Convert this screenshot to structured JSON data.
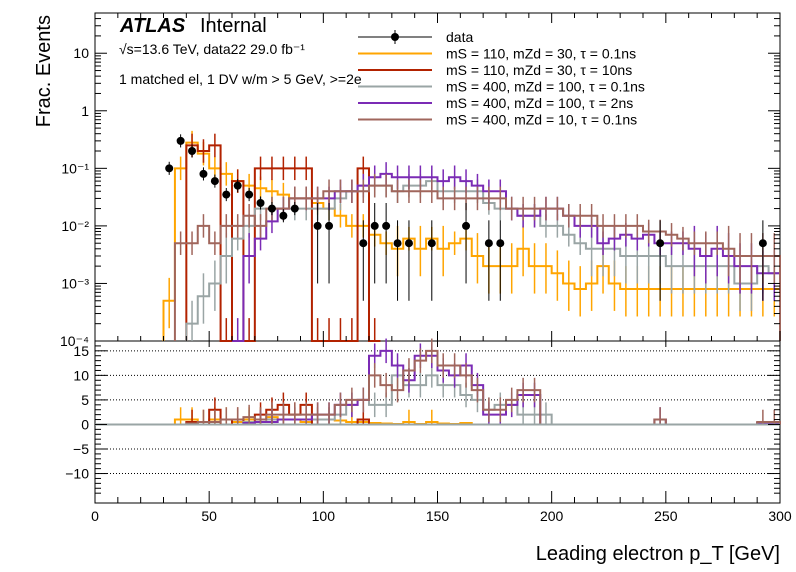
{
  "header": {
    "experiment": "ATLAS",
    "status": "Internal",
    "energy_lumi": "√s=13.6 TeV, data22 29.0 fb⁻¹",
    "selection": "1 matched el, 1 DV w/m > 5 GeV, >=2e"
  },
  "chart_data": [
    {
      "panel": "main",
      "type": "line",
      "xlabel": "Leading electron p_T [GeV]",
      "ylabel": "Frac. Events",
      "xlim": [
        0,
        300
      ],
      "ylim": [
        0.0001,
        50
      ],
      "yscale": "log",
      "bin_width": 5,
      "x_ticks": [
        0,
        50,
        100,
        150,
        200,
        250,
        300
      ],
      "y_ticks": [
        {
          "value": 10,
          "label": "10"
        },
        {
          "value": 1,
          "label": "1"
        },
        {
          "value": 0.1,
          "label": "10⁻¹"
        },
        {
          "value": 0.01,
          "label": "10⁻²"
        },
        {
          "value": 0.001,
          "label": "10⁻³"
        },
        {
          "value": 0.0001,
          "label": "10⁻⁴"
        }
      ],
      "legend_position": "top-right",
      "series": [
        {
          "name": "data",
          "kind": "points",
          "color": "#000000",
          "x": [
            32.5,
            37.5,
            42.5,
            47.5,
            52.5,
            57.5,
            62.5,
            67.5,
            72.5,
            77.5,
            82.5,
            87.5,
            97.5,
            102.5,
            117.5,
            122.5,
            127.5,
            132.5,
            137.5,
            147.5,
            162.5,
            172.5,
            177.5,
            247.5,
            292.5
          ],
          "y": [
            0.1,
            0.3,
            0.2,
            0.08,
            0.06,
            0.035,
            0.05,
            0.035,
            0.025,
            0.02,
            0.015,
            0.02,
            0.01,
            0.01,
            0.005,
            0.01,
            0.01,
            0.005,
            0.005,
            0.005,
            0.01,
            0.005,
            0.005,
            0.005,
            0.005
          ]
        },
        {
          "name": "mS = 110, mZd = 30, τ = 0.1ns",
          "kind": "hist",
          "color": "#ffa500",
          "values": [
            0,
            0,
            0,
            0,
            0,
            0,
            0.0005,
            0.1,
            0.28,
            0.18,
            0.1,
            0.08,
            0.06,
            0.05,
            0.045,
            0.04,
            0.035,
            0.03,
            0.03,
            0.025,
            0.02,
            0.015,
            0.01,
            0.01,
            0.007,
            0.005,
            0.004,
            0.006,
            0.004,
            0.006,
            0.004,
            0.005,
            0.006,
            0.003,
            0.002,
            0.002,
            0.002,
            0.004,
            0.002,
            0.002,
            0.0015,
            0.001,
            0.0008,
            0.001,
            0.002,
            0.001,
            0.0008,
            0.0008,
            0.0008,
            0.0008,
            0.0008,
            0.0008,
            0.0008,
            0.0008,
            0.0008,
            0.0008,
            0.0008,
            0.0008,
            0.0008,
            0.0008
          ]
        },
        {
          "name": "mS = 110, mZd = 30, τ = 10ns",
          "kind": "hist",
          "color": "#b22200",
          "values": [
            0,
            0,
            0,
            0,
            0,
            0,
            0,
            0,
            0.25,
            0.2,
            0.25,
            0.0001,
            0.06,
            0.0001,
            0.1,
            0.1,
            0.1,
            0.1,
            0.1,
            0.0001,
            0.0001,
            0.0001,
            0.0001,
            0.1,
            0.0001,
            0,
            0,
            0,
            0,
            0,
            0,
            0,
            0,
            0,
            0,
            0,
            0,
            0,
            0,
            0,
            0,
            0,
            0,
            0,
            0,
            0,
            0,
            0,
            0,
            0,
            0,
            0,
            0,
            0,
            0,
            0,
            0,
            0,
            0,
            0
          ]
        },
        {
          "name": "mS = 400, mZd = 100, τ = 0.1ns",
          "kind": "hist",
          "color": "#9aa5a5",
          "values": [
            0,
            0,
            0,
            0,
            0,
            0,
            0,
            0,
            0.0002,
            0.0006,
            0.001,
            0.003,
            0.006,
            0.01,
            0.02,
            0.02,
            0.02,
            0.02,
            0.02,
            0.02,
            0.02,
            0.03,
            0.04,
            0.05,
            0.05,
            0.05,
            0.04,
            0.05,
            0.05,
            0.06,
            0.04,
            0.04,
            0.04,
            0.04,
            0.025,
            0.02,
            0.02,
            0.015,
            0.015,
            0.01,
            0.01,
            0.007,
            0.005,
            0.004,
            0.004,
            0.004,
            0.003,
            0.003,
            0.003,
            0.003,
            0.002,
            0.002,
            0.002,
            0.002,
            0.002,
            0.002,
            0.001,
            0.001,
            0.002,
            0.0015
          ]
        },
        {
          "name": "mS = 400, mZd = 100, τ = 2ns",
          "kind": "hist",
          "color": "#7b2bb5",
          "values": [
            0,
            0,
            0,
            0,
            0,
            0,
            0,
            0,
            0,
            0,
            0,
            0,
            0.0001,
            0.003,
            0.006,
            0.012,
            0.02,
            0.03,
            0.03,
            0.03,
            0.03,
            0.04,
            0.04,
            0.05,
            0.07,
            0.08,
            0.07,
            0.07,
            0.07,
            0.07,
            0.06,
            0.07,
            0.06,
            0.05,
            0.04,
            0.04,
            0.02,
            0.015,
            0.015,
            0.02,
            0.02,
            0.015,
            0.01,
            0.01,
            0.005,
            0.006,
            0.007,
            0.006,
            0.007,
            0.005,
            0.005,
            0.005,
            0.004,
            0.003,
            0.004,
            0.003,
            0.002,
            0.002,
            0.0015,
            0.0015
          ]
        },
        {
          "name": "mS = 400, mZd = 10, τ = 0.1ns",
          "kind": "hist",
          "color": "#a0665c",
          "values": [
            0,
            0,
            0,
            0,
            0,
            0,
            0,
            0.005,
            0.005,
            0.01,
            0.005,
            0.01,
            0.01,
            0.015,
            0.01,
            0.02,
            0.02,
            0.03,
            0.03,
            0.03,
            0.04,
            0.04,
            0.04,
            0.04,
            0.05,
            0.05,
            0.04,
            0.04,
            0.04,
            0.04,
            0.03,
            0.03,
            0.03,
            0.03,
            0.03,
            0.03,
            0.02,
            0.02,
            0.02,
            0.02,
            0.02,
            0.015,
            0.015,
            0.015,
            0.01,
            0.01,
            0.01,
            0.01,
            0.008,
            0.008,
            0.007,
            0.006,
            0.005,
            0.005,
            0.005,
            0.004,
            0.003,
            0.003,
            0.003,
            0.003
          ]
        }
      ]
    },
    {
      "panel": "ratio",
      "type": "line",
      "xlabel": "Leading electron p_T [GeV]",
      "xlim": [
        0,
        300
      ],
      "ylim": [
        -16,
        17
      ],
      "x_ticks": [
        0,
        50,
        100,
        150,
        200,
        250,
        300
      ],
      "y_ticks": [
        15,
        10,
        5,
        0,
        -5,
        -10
      ],
      "gridlines_y": [
        15,
        10,
        5,
        -5,
        -10
      ],
      "bin_width": 5,
      "series": [
        {
          "name": "mS = 110, mZd = 30, τ = 0.1ns",
          "color": "#ffa500",
          "values": [
            0,
            0,
            0,
            0,
            0,
            0,
            0,
            1,
            1,
            0.5,
            1,
            1,
            0.5,
            1,
            1,
            1.5,
            1,
            1,
            0.5,
            1,
            1,
            0.8,
            0.5,
            0.5,
            0.3,
            0.2,
            0.1,
            0.5,
            0.1,
            0.5,
            0.2,
            0.1,
            0.3,
            0,
            0,
            0,
            0,
            0,
            0,
            0,
            0,
            0,
            0,
            0,
            0,
            0,
            0,
            0,
            0,
            0,
            0,
            0,
            0,
            0,
            0,
            0,
            0,
            0,
            0,
            0
          ]
        },
        {
          "name": "mS = 110, mZd = 30, τ = 10ns",
          "color": "#b22200",
          "values": [
            0,
            0,
            0,
            0,
            0,
            0,
            0,
            0,
            0.5,
            0,
            3,
            0,
            1,
            0,
            2,
            3,
            4,
            2,
            4,
            0,
            0,
            0,
            0,
            1,
            0,
            0,
            0,
            0,
            0,
            0,
            0,
            0,
            0,
            0,
            0,
            0,
            0,
            0,
            0,
            0,
            0,
            0,
            0,
            0,
            0,
            0,
            0,
            0,
            0,
            0,
            0,
            0,
            0,
            0,
            0,
            0,
            0,
            0,
            0,
            0
          ]
        },
        {
          "name": "mS = 400, mZd = 100, τ = 0.1ns",
          "color": "#9aa5a5",
          "values": [
            0,
            0,
            0,
            0,
            0,
            0,
            0,
            0,
            0,
            0,
            0,
            0,
            0,
            0.5,
            0.5,
            1,
            1,
            1,
            1,
            1,
            1,
            2,
            4,
            5,
            4,
            4,
            10,
            8,
            8,
            10,
            8,
            8,
            6,
            5,
            3,
            4,
            4,
            2,
            2,
            2,
            0,
            0,
            0,
            0,
            0,
            0,
            0,
            0,
            0,
            1,
            0,
            0,
            0,
            0,
            0,
            0,
            0,
            0,
            0.3,
            0.3
          ]
        },
        {
          "name": "mS = 400, mZd = 100, τ = 2ns",
          "color": "#7b2bb5",
          "values": [
            0,
            0,
            0,
            0,
            0,
            0,
            0,
            0,
            0,
            0,
            0,
            0,
            0,
            0.3,
            0.5,
            0.5,
            1,
            1,
            1,
            2,
            2,
            4,
            4,
            5,
            14,
            15,
            12,
            9,
            14,
            14,
            11,
            10,
            12,
            8,
            2,
            2,
            4,
            6,
            6,
            0,
            0,
            0,
            0,
            0,
            0,
            0,
            0,
            0,
            0,
            1,
            0,
            0,
            0,
            0,
            0,
            0,
            0,
            0,
            0.3,
            0.3
          ]
        },
        {
          "name": "mS = 400, mZd = 10, τ = 0.1ns",
          "color": "#a0665c",
          "values": [
            0,
            0,
            0,
            0,
            0,
            0,
            0,
            0,
            0.2,
            0.5,
            0.5,
            1,
            1,
            1.5,
            1,
            2,
            2,
            2,
            2,
            2,
            2,
            4,
            5,
            5,
            10,
            8,
            7,
            11,
            13,
            15,
            12,
            12,
            10,
            7,
            3,
            3,
            5,
            7,
            7,
            0,
            0,
            0,
            0,
            0,
            0,
            0,
            0,
            0,
            0,
            1,
            0,
            0,
            0,
            0,
            0,
            0,
            0,
            0,
            0.5,
            0.5
          ]
        }
      ]
    }
  ]
}
